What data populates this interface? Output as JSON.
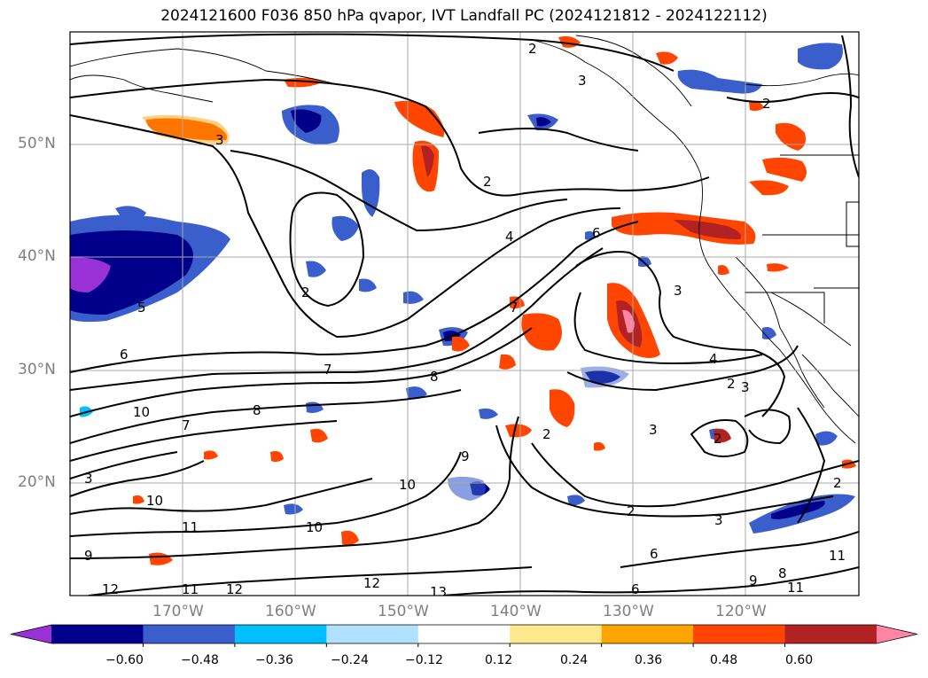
{
  "title": "2024121600 F036 850 hPa qvapor, IVT Landfall PC (2024121812 - 2024122112)",
  "lat_labels": [
    "50°N",
    "40°N",
    "30°N",
    "20°N"
  ],
  "lon_labels": [
    "170°W",
    "160°W",
    "150°W",
    "140°W",
    "130°W",
    "120°W"
  ],
  "colorbar": {
    "tick_labels": [
      "−0.60",
      "−0.48",
      "−0.36",
      "−0.24",
      "−0.12",
      "0.12",
      "0.24",
      "0.36",
      "0.48",
      "0.60"
    ],
    "colors": [
      "#9a31d6",
      "#00008b",
      "#3a5fcd",
      "#00bfff",
      "#b0e2ff",
      "#ffffff",
      "#fde98c",
      "#ffa500",
      "#ff4500",
      "#b22222",
      "#ff85a6"
    ]
  },
  "contour_labels": [
    "2",
    "3",
    "4",
    "5",
    "6",
    "7",
    "8",
    "9",
    "10",
    "11",
    "12",
    "13"
  ],
  "map": {
    "lat_range": [
      10,
      60
    ],
    "lon_range": [
      -180,
      -110
    ]
  }
}
